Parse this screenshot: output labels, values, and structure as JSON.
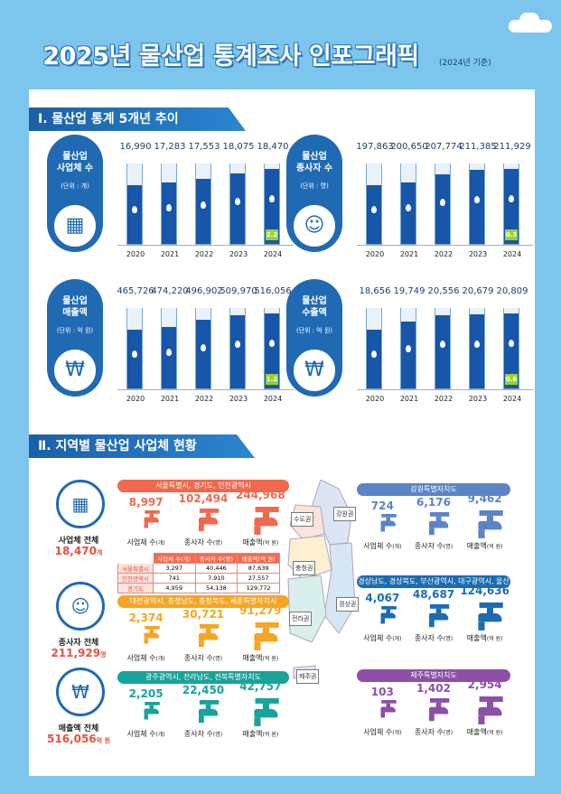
{
  "title": "2025년 물산업 통계조사 인포그래픽",
  "basis": "(2024년 기준)",
  "section1": {
    "title": "Ⅰ. 물산업 통계 5개년 추이",
    "years": [
      "2020",
      "2021",
      "2022",
      "2023",
      "2024"
    ],
    "charts": [
      {
        "name": "물산업\n사업체 수",
        "name_lines": [
          "물산업",
          "사업체 수"
        ],
        "unit": "(단위 : 개)",
        "icon": "building-icon",
        "values": [
          "16,990",
          "17,283",
          "17,553",
          "18,075",
          "18,470"
        ],
        "raw": [
          16990,
          17283,
          17553,
          18075,
          18470
        ],
        "growth": "2.2"
      },
      {
        "name": "물산업 종사자 수",
        "name_lines": [
          "물산업",
          "종사자 수"
        ],
        "unit": "(단위 : 명)",
        "icon": "people-icon",
        "values": [
          "197,863",
          "200,650",
          "207,774",
          "211,385",
          "211,929"
        ],
        "raw": [
          197863,
          200650,
          207774,
          211385,
          211929
        ],
        "growth": "0.3"
      },
      {
        "name": "물산업 매출액",
        "name_lines": [
          "물산업",
          "매출액"
        ],
        "unit": "(단위 : 억 원)",
        "icon": "coins-icon",
        "values": [
          "465,726",
          "474,220",
          "496,902",
          "509,970",
          "516,056"
        ],
        "raw": [
          465726,
          474220,
          496902,
          509970,
          516056
        ],
        "growth": "1.2"
      },
      {
        "name": "물산업 수출액",
        "name_lines": [
          "물산업",
          "수출액"
        ],
        "unit": "(단위 : 억 원)",
        "icon": "won-hand-icon",
        "values": [
          "18,656",
          "19,749",
          "20,556",
          "20,679",
          "20,809"
        ],
        "raw": [
          18656,
          19749,
          20556,
          20679,
          20809
        ],
        "growth": "0.6"
      }
    ]
  },
  "section2": {
    "title": "Ⅱ. 지역별 물산업 사업체 현황",
    "totals": [
      {
        "label": "사업체 전체",
        "value": "18,470",
        "unit": "개",
        "icon": "building-icon"
      },
      {
        "label": "종사자 전체",
        "value": "211,929",
        "unit": "명",
        "icon": "people-icon"
      },
      {
        "label": "매출액 전체",
        "value": "516,056",
        "unit": "억 원",
        "icon": "money-bag-icon"
      }
    ],
    "metric_labels": [
      "사업체 수",
      "종사자 수",
      "매출액"
    ],
    "metric_units": [
      "(개)",
      "(명)",
      "(억 원)"
    ],
    "regions": {
      "capital": {
        "name": "서울특별시, 경기도, 인천광역시",
        "color": "#f0694e",
        "values": [
          "8,997",
          "102,494",
          "244,968"
        ]
      },
      "chungcheong": {
        "name": "대전광역시, 충청남도, 충청북도, 세종특별자치시",
        "color": "#f5a623",
        "values": [
          "2,374",
          "30,721",
          "91,279"
        ]
      },
      "honam": {
        "name": "광주광역시, 전라남도, 전북특별자치도",
        "color": "#18a39a",
        "values": [
          "2,205",
          "22,450",
          "42,757"
        ]
      },
      "gangwon": {
        "name": "강원특별자치도",
        "color": "#5a84c6",
        "values": [
          "724",
          "6,176",
          "9,462"
        ]
      },
      "yeongnam": {
        "name": "경상남도, 경상북도, 부산광역시, 대구광역시, 울산광역시",
        "color": "#1b6db2",
        "values": [
          "4,067",
          "48,687",
          "124,636"
        ]
      },
      "jeju": {
        "name": "제주특별자치도",
        "color": "#8d4fa8",
        "values": [
          "103",
          "1,402",
          "2,954"
        ]
      }
    },
    "capital_table": {
      "headers": [
        "사업체 수(개)",
        "종사자 수(명)",
        "매출액(억 원)"
      ],
      "rows": [
        {
          "name": "서울특별시",
          "values": [
            "3,297",
            "40,446",
            "87,639"
          ]
        },
        {
          "name": "인천광역시",
          "values": [
            "741",
            "7,910",
            "27,557"
          ]
        },
        {
          "name": "경기도",
          "values": [
            "4,959",
            "54,138",
            "129,772"
          ]
        }
      ]
    },
    "map_labels": {
      "capital": "수도권",
      "gangwon": "강원권",
      "chungcheong": "충청권",
      "yeongnam": "경상권",
      "honam": "전라권",
      "jeju": "제주권"
    }
  }
}
